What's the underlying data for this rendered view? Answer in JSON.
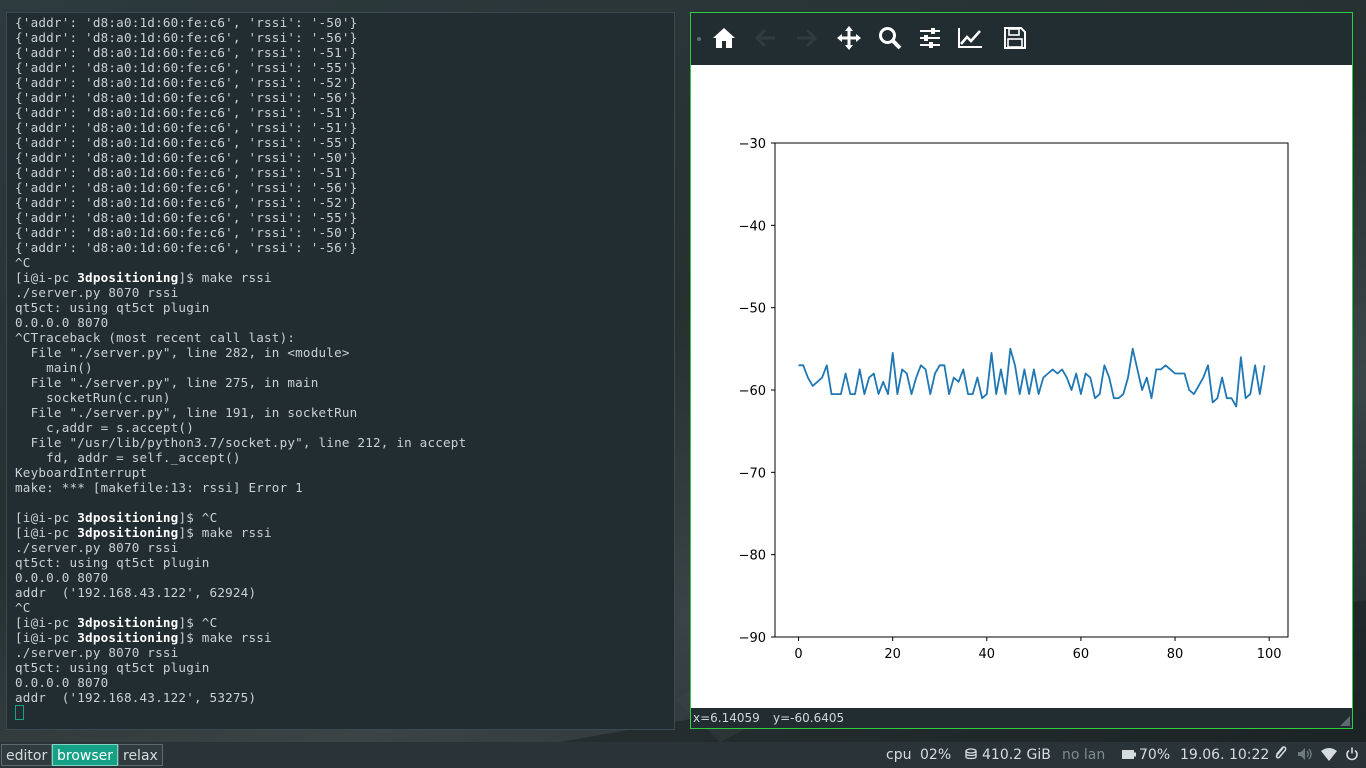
{
  "terminal": {
    "lines": [
      {
        "text": "{'addr': 'd8:a0:1d:60:fe:c6', 'rssi': '-50'}"
      },
      {
        "text": "{'addr': 'd8:a0:1d:60:fe:c6', 'rssi': '-56'}"
      },
      {
        "text": "{'addr': 'd8:a0:1d:60:fe:c6', 'rssi': '-51'}"
      },
      {
        "text": "{'addr': 'd8:a0:1d:60:fe:c6', 'rssi': '-55'}"
      },
      {
        "text": "{'addr': 'd8:a0:1d:60:fe:c6', 'rssi': '-52'}"
      },
      {
        "text": "{'addr': 'd8:a0:1d:60:fe:c6', 'rssi': '-56'}"
      },
      {
        "text": "{'addr': 'd8:a0:1d:60:fe:c6', 'rssi': '-51'}"
      },
      {
        "text": "{'addr': 'd8:a0:1d:60:fe:c6', 'rssi': '-51'}"
      },
      {
        "text": "{'addr': 'd8:a0:1d:60:fe:c6', 'rssi': '-55'}"
      },
      {
        "text": "{'addr': 'd8:a0:1d:60:fe:c6', 'rssi': '-50'}"
      },
      {
        "text": "{'addr': 'd8:a0:1d:60:fe:c6', 'rssi': '-51'}"
      },
      {
        "text": "{'addr': 'd8:a0:1d:60:fe:c6', 'rssi': '-56'}"
      },
      {
        "text": "{'addr': 'd8:a0:1d:60:fe:c6', 'rssi': '-52'}"
      },
      {
        "text": "{'addr': 'd8:a0:1d:60:fe:c6', 'rssi': '-55'}"
      },
      {
        "text": "{'addr': 'd8:a0:1d:60:fe:c6', 'rssi': '-50'}"
      },
      {
        "text": "{'addr': 'd8:a0:1d:60:fe:c6', 'rssi': '-56'}"
      },
      {
        "text": "^C"
      },
      {
        "prompt": true,
        "user": "[i@i-pc ",
        "dir": "3dpositioning",
        "tail": "]$ make rssi"
      },
      {
        "text": "./server.py 8070 rssi"
      },
      {
        "text": "qt5ct: using qt5ct plugin"
      },
      {
        "text": "0.0.0.0 8070"
      },
      {
        "text": "^CTraceback (most recent call last):"
      },
      {
        "text": "  File \"./server.py\", line 282, in <module>"
      },
      {
        "text": "    main()"
      },
      {
        "text": "  File \"./server.py\", line 275, in main"
      },
      {
        "text": "    socketRun(c.run)"
      },
      {
        "text": "  File \"./server.py\", line 191, in socketRun"
      },
      {
        "text": "    c,addr = s.accept()"
      },
      {
        "text": "  File \"/usr/lib/python3.7/socket.py\", line 212, in accept"
      },
      {
        "text": "    fd, addr = self._accept()"
      },
      {
        "text": "KeyboardInterrupt"
      },
      {
        "text": "make: *** [makefile:13: rssi] Error 1"
      },
      {
        "text": ""
      },
      {
        "prompt": true,
        "user": "[i@i-pc ",
        "dir": "3dpositioning",
        "tail": "]$ ^C"
      },
      {
        "prompt": true,
        "user": "[i@i-pc ",
        "dir": "3dpositioning",
        "tail": "]$ make rssi"
      },
      {
        "text": "./server.py 8070 rssi"
      },
      {
        "text": "qt5ct: using qt5ct plugin"
      },
      {
        "text": "0.0.0.0 8070"
      },
      {
        "text": "addr  ('192.168.43.122', 62924)"
      },
      {
        "text": "^C"
      },
      {
        "prompt": true,
        "user": "[i@i-pc ",
        "dir": "3dpositioning",
        "tail": "]$ ^C"
      },
      {
        "prompt": true,
        "user": "[i@i-pc ",
        "dir": "3dpositioning",
        "tail": "]$ make rssi"
      },
      {
        "text": "./server.py 8070 rssi"
      },
      {
        "text": "qt5ct: using qt5ct plugin"
      },
      {
        "text": "0.0.0.0 8070"
      },
      {
        "text": "addr  ('192.168.43.122', 53275)"
      }
    ]
  },
  "plot_window": {
    "toolbar": {
      "buttons": [
        {
          "name": "home-icon",
          "enabled": true
        },
        {
          "name": "back-arrow-icon",
          "enabled": false
        },
        {
          "name": "forward-arrow-icon",
          "enabled": false
        },
        {
          "name": "pan-move-icon",
          "enabled": true
        },
        {
          "name": "zoom-magnifier-icon",
          "enabled": true
        },
        {
          "name": "subplots-sliders-icon",
          "enabled": true
        },
        {
          "name": "edit-curve-icon",
          "enabled": true
        },
        {
          "name": "save-floppy-icon",
          "enabled": true
        }
      ],
      "icon_color": "#ffffff",
      "disabled_color": "#2f3b3f"
    },
    "status": {
      "x_readout": "x=6.14059",
      "y_readout": "y=-60.6405"
    }
  },
  "chart_data": {
    "type": "line",
    "title": "",
    "xlabel": "",
    "ylabel": "",
    "xlim": [
      -5,
      104
    ],
    "ylim": [
      -90,
      -30
    ],
    "xticks": [
      0,
      20,
      40,
      60,
      80,
      100
    ],
    "yticks": [
      -30,
      -40,
      -50,
      -60,
      -70,
      -80,
      -90
    ],
    "xtick_labels": [
      "0",
      "20",
      "40",
      "60",
      "80",
      "100"
    ],
    "ytick_labels": [
      "−30",
      "−40",
      "−50",
      "−60",
      "−70",
      "−80",
      "−90"
    ],
    "grid": false,
    "line_color": "#1f77b4",
    "series": [
      {
        "x": [
          0,
          1,
          2,
          3,
          4,
          5,
          6,
          7,
          8,
          9,
          10,
          11,
          12,
          13,
          14,
          15,
          16,
          17,
          18,
          19,
          20,
          21,
          22,
          23,
          24,
          25,
          26,
          27,
          28,
          29,
          30,
          31,
          32,
          33,
          34,
          35,
          36,
          37,
          38,
          39,
          40,
          41,
          42,
          43,
          44,
          45,
          46,
          47,
          48,
          49,
          50,
          51,
          52,
          53,
          54,
          55,
          56,
          57,
          58,
          59,
          60,
          61,
          62,
          63,
          64,
          65,
          66,
          67,
          68,
          69,
          70,
          71,
          72,
          73,
          74,
          75,
          76,
          77,
          78,
          79,
          80,
          81,
          82,
          83,
          84,
          85,
          86,
          87,
          88,
          89,
          90,
          91,
          92,
          93,
          94,
          95,
          96,
          97,
          98,
          99
        ],
        "y": [
          -57,
          -57,
          -58.5,
          -59.5,
          -59,
          -58.5,
          -57,
          -60.5,
          -60.5,
          -60.5,
          -58,
          -60.5,
          -60.5,
          -57.5,
          -60.5,
          -58.5,
          -58,
          -60.5,
          -59,
          -60.5,
          -55.5,
          -60.5,
          -57.5,
          -58,
          -60.5,
          -58.5,
          -57,
          -57.5,
          -60.5,
          -58,
          -57,
          -57,
          -60.5,
          -58.5,
          -59,
          -57.5,
          -60.5,
          -60.5,
          -58.5,
          -61,
          -60.5,
          -55.5,
          -60.5,
          -57.5,
          -60.5,
          -55,
          -57,
          -60.5,
          -57.5,
          -60.5,
          -57.5,
          -60.5,
          -58.5,
          -58,
          -57.5,
          -58,
          -57.5,
          -58.5,
          -60,
          -58,
          -60.5,
          -58,
          -58.5,
          -61,
          -60.5,
          -57,
          -58.5,
          -61,
          -61,
          -60.5,
          -58.5,
          -55,
          -57.5,
          -60,
          -58.5,
          -61,
          -57.5,
          -57.5,
          -57,
          -57.5,
          -58,
          -58,
          -58,
          -60,
          -60.5,
          -59.5,
          -58.5,
          -57,
          -61.5,
          -61,
          -58.5,
          -61,
          -61,
          -62,
          -56,
          -61,
          -60.5,
          -57,
          -60.5,
          -57
        ]
      }
    ]
  },
  "taskbar": {
    "workspaces": [
      {
        "label": "editor",
        "active": false
      },
      {
        "label": "browser",
        "active": true
      },
      {
        "label": "relax",
        "active": false
      }
    ],
    "cpu_label": "cpu",
    "cpu_value": "02%",
    "disk_value": "410.2 GiB",
    "lan_status": "no lan",
    "battery_value": "70%",
    "datetime": "19.06. 10:22",
    "accent_color": "#16a085"
  }
}
